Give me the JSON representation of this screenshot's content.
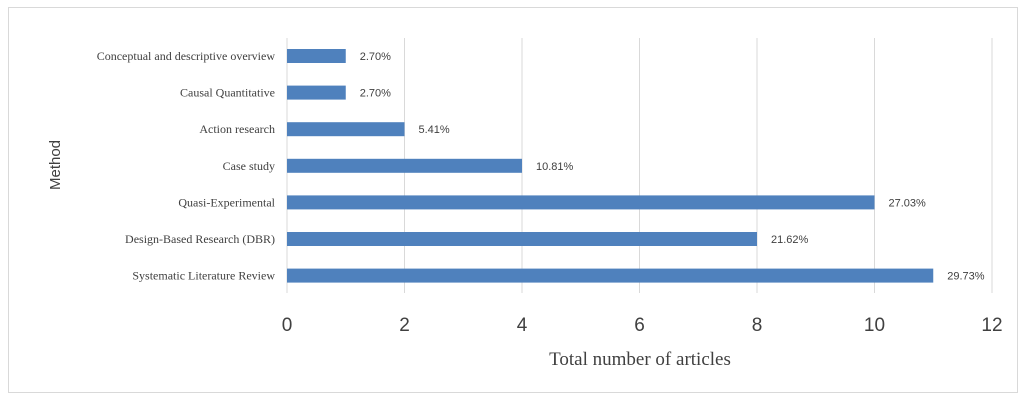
{
  "chart_data": {
    "type": "bar",
    "orientation": "horizontal",
    "title": "",
    "xlabel": "Total number of articles",
    "ylabel": "Method",
    "xlim": [
      0,
      12
    ],
    "xticks": [
      0,
      2,
      4,
      6,
      8,
      10,
      12
    ],
    "grid": "vertical",
    "legend": "none",
    "bar_color": "#4f81bd",
    "categories": [
      "Conceptual and descriptive overview",
      "Causal Quantitative",
      "Action research",
      "Case study",
      "Quasi-Experimental",
      "Design-Based Research (DBR)",
      "Systematic Literature Review"
    ],
    "values": [
      1,
      1,
      2,
      4,
      10,
      8,
      11
    ],
    "data_labels": [
      "2.70%",
      "2.70%",
      "5.41%",
      "10.81%",
      "27.03%",
      "21.62%",
      "29.73%"
    ]
  }
}
